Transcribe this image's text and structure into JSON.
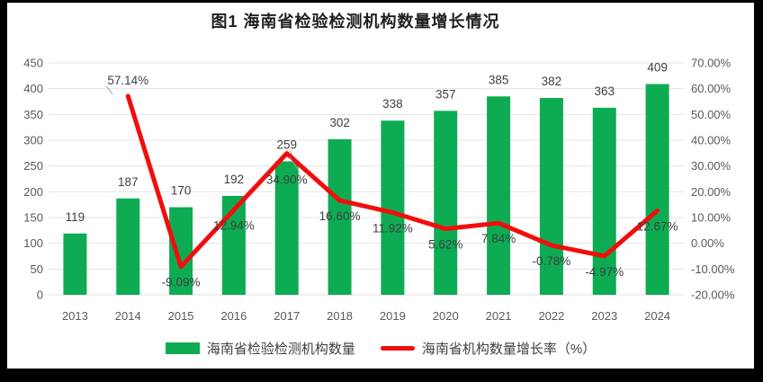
{
  "window": {
    "frame_color": "#000000",
    "canvas_color": "#ffffff"
  },
  "title": "图1 海南省检验检测机构数量增长情况",
  "colors": {
    "bar": "#0dac53",
    "line": "#f20d0d",
    "grid": "#e3e3e3",
    "axis_text": "#595959",
    "data_label": "#3f3f3f",
    "title_text": "#1f1f1f",
    "leader": "#a6a6a6"
  },
  "chart_data": {
    "type": "bar",
    "subtype": "bar+line combo, dual axis",
    "title": "图1 海南省检验检测机构数量增长情况",
    "categories": [
      "2013",
      "2014",
      "2015",
      "2016",
      "2017",
      "2018",
      "2019",
      "2020",
      "2021",
      "2022",
      "2023",
      "2024"
    ],
    "series": [
      {
        "name": "海南省检验检测机构数量",
        "type": "bar",
        "axis": "left",
        "values": [
          119,
          187,
          170,
          192,
          259,
          302,
          338,
          357,
          385,
          382,
          363,
          409
        ],
        "labels": [
          "119",
          "187",
          "170",
          "192",
          "259",
          "302",
          "338",
          "357",
          "385",
          "382",
          "363",
          "409"
        ],
        "label_leader": [
          false,
          false,
          false,
          false,
          true,
          false,
          false,
          false,
          false,
          false,
          false,
          false
        ]
      },
      {
        "name": "海南省机构数量增长率（%）",
        "type": "line",
        "axis": "right",
        "values": [
          null,
          57.14,
          -9.09,
          12.94,
          34.9,
          16.6,
          11.92,
          5.62,
          7.84,
          -0.78,
          -4.97,
          12.67
        ],
        "labels": [
          null,
          "57.14%",
          "-9.09%",
          "12.94%",
          "34.90%",
          "16.60%",
          "11.92%",
          "5.62%",
          "7.84%",
          "-0.78%",
          "-4.97%",
          "12.67%"
        ],
        "label_side": [
          null,
          "above",
          "below",
          "below",
          "below",
          "below",
          "below",
          "below",
          "below",
          "below",
          "below",
          "below"
        ],
        "label_dy": [
          0,
          0,
          0,
          0,
          12,
          0,
          0,
          0,
          0,
          0,
          0,
          0
        ],
        "leader": [
          false,
          true,
          false,
          false,
          true,
          false,
          false,
          false,
          false,
          false,
          false,
          false
        ]
      }
    ],
    "left_axis": {
      "min": 0,
      "max": 450,
      "step": 50,
      "ticks": [
        "0",
        "50",
        "100",
        "150",
        "200",
        "250",
        "300",
        "350",
        "400",
        "450"
      ]
    },
    "right_axis": {
      "min": -20,
      "max": 70,
      "step": 10,
      "ticks": [
        "-20.00%",
        "-10.00%",
        "0.00%",
        "10.00%",
        "20.00%",
        "30.00%",
        "40.00%",
        "50.00%",
        "60.00%",
        "70.00%"
      ]
    },
    "grid": true,
    "legend_position": "bottom"
  },
  "legend": {
    "items": [
      {
        "label": "海南省检验检测机构数量",
        "marker": "bar"
      },
      {
        "label": "海南省机构数量增长率（%）",
        "marker": "line"
      }
    ]
  }
}
